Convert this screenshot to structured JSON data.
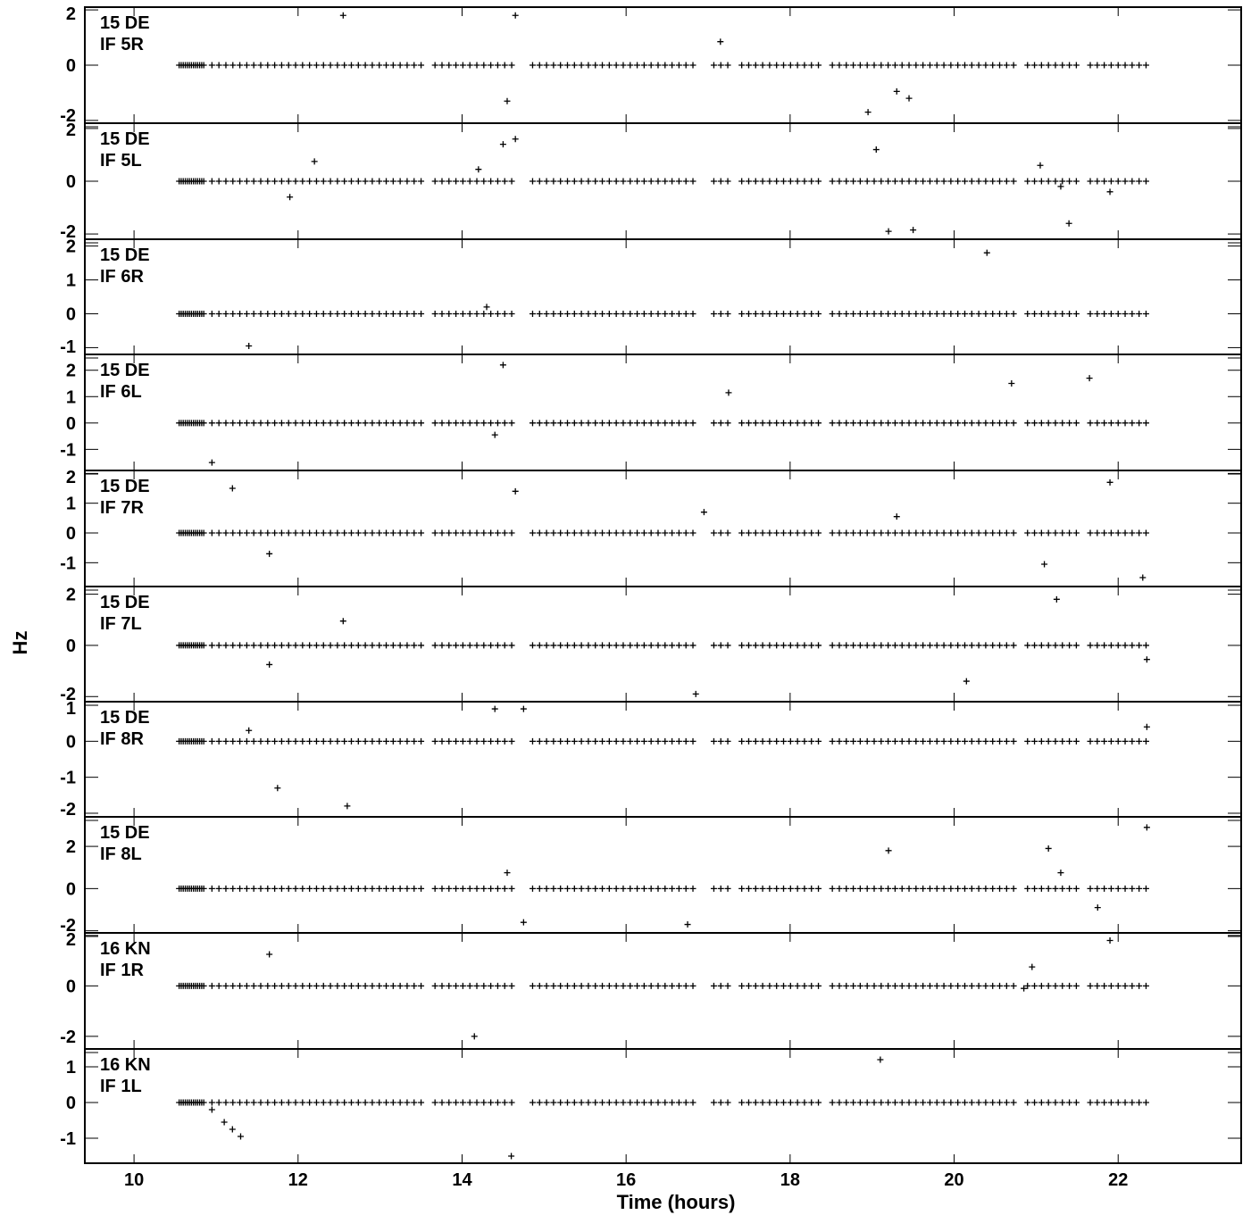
{
  "chart_data": {
    "type": "scatter",
    "title": "",
    "xlabel": "Time (hours)",
    "ylabel": "Hz",
    "xlim": [
      9.4,
      23.5
    ],
    "x_ticks": [
      10,
      12,
      14,
      16,
      18,
      20,
      22
    ],
    "marker": "plus",
    "color": "#000000",
    "panels": [
      {
        "station": "15 DE",
        "if": "IF 5R",
        "ylim": [
          -2.1,
          2.1
        ],
        "y_ticks": [
          2,
          0,
          -2
        ],
        "outliers": [
          [
            12.55,
            1.8
          ],
          [
            14.65,
            1.8
          ],
          [
            17.15,
            0.85
          ],
          [
            14.55,
            -1.3
          ],
          [
            19.3,
            -0.95
          ],
          [
            19.45,
            -1.2
          ],
          [
            18.95,
            -1.7
          ]
        ]
      },
      {
        "station": "15 DE",
        "if": "IF 5L",
        "ylim": [
          -2.2,
          2.2
        ],
        "y_ticks": [
          2,
          0,
          -2
        ],
        "outliers": [
          [
            12.2,
            0.75
          ],
          [
            14.2,
            0.45
          ],
          [
            14.5,
            1.4
          ],
          [
            14.65,
            1.6
          ],
          [
            11.9,
            -0.6
          ],
          [
            19.05,
            1.2
          ],
          [
            21.05,
            0.6
          ],
          [
            21.3,
            -0.2
          ],
          [
            21.9,
            -0.4
          ],
          [
            21.4,
            -1.6
          ],
          [
            19.2,
            -1.9
          ],
          [
            19.5,
            -1.85
          ]
        ]
      },
      {
        "station": "15 DE",
        "if": "IF 6R",
        "ylim": [
          -1.2,
          2.2
        ],
        "y_ticks": [
          2,
          1,
          0,
          -1
        ],
        "outliers": [
          [
            14.3,
            0.2
          ],
          [
            11.4,
            -0.95
          ],
          [
            20.4,
            1.8
          ]
        ]
      },
      {
        "station": "15 DE",
        "if": "IF 6L",
        "ylim": [
          -1.8,
          2.6
        ],
        "y_ticks": [
          2,
          1,
          0,
          -1
        ],
        "outliers": [
          [
            14.5,
            2.2
          ],
          [
            17.25,
            1.15
          ],
          [
            20.7,
            1.5
          ],
          [
            21.65,
            1.7
          ],
          [
            14.4,
            -0.45
          ],
          [
            10.95,
            -1.5
          ]
        ]
      },
      {
        "station": "15 DE",
        "if": "IF 7R",
        "ylim": [
          -1.8,
          2.1
        ],
        "y_ticks": [
          2,
          1,
          0,
          -1
        ],
        "outliers": [
          [
            11.2,
            1.5
          ],
          [
            14.65,
            1.4
          ],
          [
            16.95,
            0.7
          ],
          [
            19.3,
            0.55
          ],
          [
            21.9,
            1.7
          ],
          [
            11.65,
            -0.7
          ],
          [
            21.1,
            -1.05
          ],
          [
            22.3,
            -1.5
          ]
        ]
      },
      {
        "station": "15 DE",
        "if": "IF 7L",
        "ylim": [
          -2.2,
          2.3
        ],
        "y_ticks": [
          2,
          0,
          -2
        ],
        "outliers": [
          [
            12.55,
            0.95
          ],
          [
            11.65,
            -0.75
          ],
          [
            16.85,
            -1.9
          ],
          [
            20.15,
            -1.4
          ],
          [
            21.25,
            1.8
          ],
          [
            22.35,
            -0.55
          ]
        ]
      },
      {
        "station": "15 DE",
        "if": "IF 8R",
        "ylim": [
          -2.1,
          1.1
        ],
        "y_ticks": [
          1,
          0,
          -1,
          -2
        ],
        "outliers": [
          [
            11.4,
            0.3
          ],
          [
            14.4,
            0.9
          ],
          [
            14.75,
            0.9
          ],
          [
            11.75,
            -1.3
          ],
          [
            12.6,
            -1.8
          ],
          [
            22.35,
            0.4
          ]
        ]
      },
      {
        "station": "15 DE",
        "if": "IF 8L",
        "ylim": [
          -2.1,
          3.4
        ],
        "y_ticks": [
          2,
          0,
          -2
        ],
        "outliers": [
          [
            14.55,
            0.75
          ],
          [
            19.2,
            1.8
          ],
          [
            21.15,
            1.9
          ],
          [
            21.3,
            0.75
          ],
          [
            22.35,
            2.9
          ],
          [
            14.75,
            -1.6
          ],
          [
            16.75,
            -1.7
          ],
          [
            21.75,
            -0.9
          ]
        ]
      },
      {
        "station": "16 KN",
        "if": "IF 1R",
        "ylim": [
          -2.5,
          2.1
        ],
        "y_ticks": [
          2,
          0,
          -2
        ],
        "outliers": [
          [
            11.65,
            1.25
          ],
          [
            14.15,
            -2.0
          ],
          [
            20.95,
            0.75
          ],
          [
            20.85,
            -0.1
          ],
          [
            21.9,
            1.8
          ]
        ]
      },
      {
        "station": "16 KN",
        "if": "IF 1L",
        "ylim": [
          -1.7,
          1.5
        ],
        "y_ticks": [
          1,
          0,
          -1
        ],
        "outliers": [
          [
            10.95,
            -0.2
          ],
          [
            11.1,
            -0.55
          ],
          [
            11.2,
            -0.75
          ],
          [
            11.3,
            -0.95
          ],
          [
            19.1,
            1.2
          ],
          [
            14.6,
            -1.5
          ]
        ]
      }
    ]
  }
}
